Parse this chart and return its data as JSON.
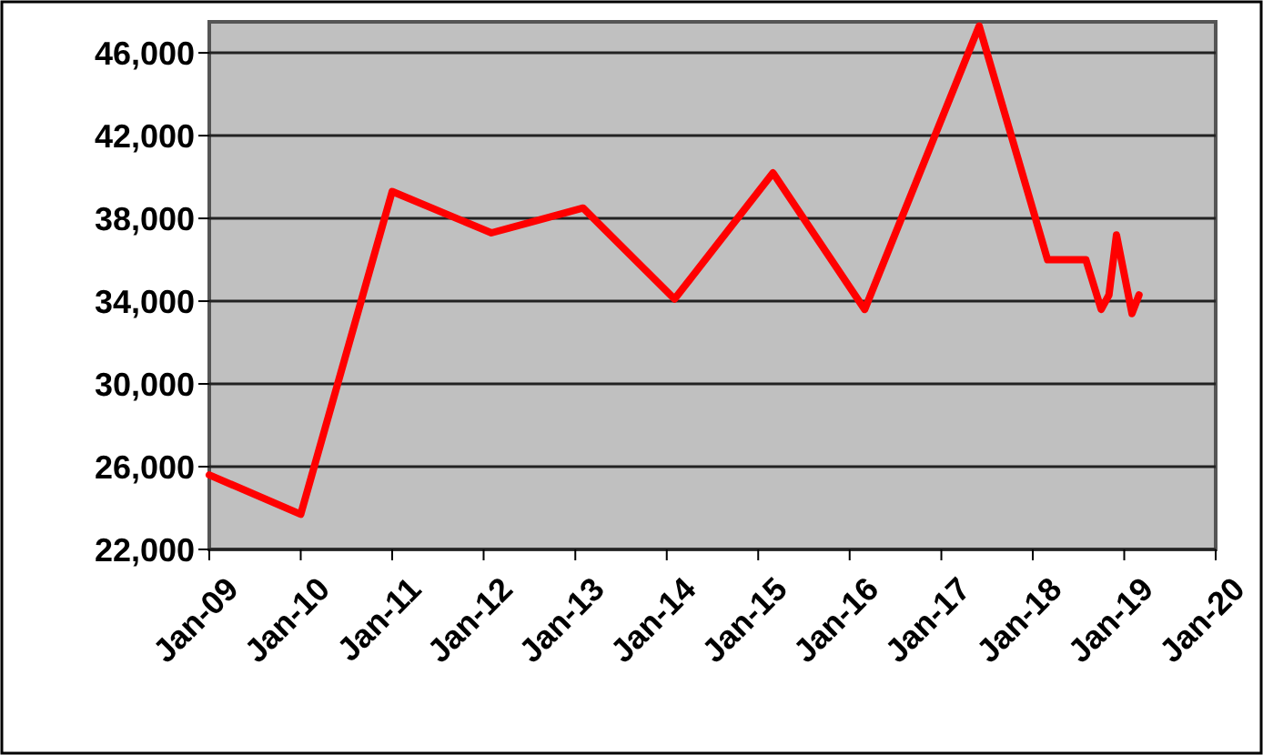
{
  "chart_data": {
    "type": "line",
    "x": [
      "2009-01",
      "2010-01",
      "2011-01",
      "2012-02",
      "2013-02",
      "2014-02",
      "2015-03",
      "2016-03",
      "2017-06",
      "2018-03",
      "2018-08",
      "2018-10",
      "2018-11",
      "2018-12",
      "2019-02",
      "2019-03"
    ],
    "series": [
      {
        "color": "#ff0000",
        "values": [
          25600,
          23700,
          39300,
          37300,
          38500,
          34100,
          40200,
          33600,
          47300,
          36000,
          36000,
          33600,
          34300,
          37200,
          33400,
          34300
        ]
      }
    ],
    "xlim": [
      "2009-01",
      "2020-01"
    ],
    "xticks": [
      {
        "value": "2009-01",
        "label": "Jan-09"
      },
      {
        "value": "2010-01",
        "label": "Jan-10"
      },
      {
        "value": "2011-01",
        "label": "Jan-11"
      },
      {
        "value": "2012-01",
        "label": "Jan-12"
      },
      {
        "value": "2013-01",
        "label": "Jan-13"
      },
      {
        "value": "2014-01",
        "label": "Jan-14"
      },
      {
        "value": "2015-01",
        "label": "Jan-15"
      },
      {
        "value": "2016-01",
        "label": "Jan-16"
      },
      {
        "value": "2017-01",
        "label": "Jan-17"
      },
      {
        "value": "2018-01",
        "label": "Jan-18"
      },
      {
        "value": "2019-01",
        "label": "Jan-19"
      },
      {
        "value": "2020-01",
        "label": "Jan-20"
      }
    ],
    "ylim": [
      22000,
      47500
    ],
    "yticks": [
      {
        "value": 22000,
        "label": "22,000"
      },
      {
        "value": 26000,
        "label": "26,000"
      },
      {
        "value": 30000,
        "label": "30,000"
      },
      {
        "value": 34000,
        "label": "34,000"
      },
      {
        "value": 38000,
        "label": "38,000"
      },
      {
        "value": 42000,
        "label": "42,000"
      },
      {
        "value": 46000,
        "label": "46,000"
      }
    ],
    "grid": "y",
    "marker": "none",
    "line_style": "solid"
  }
}
